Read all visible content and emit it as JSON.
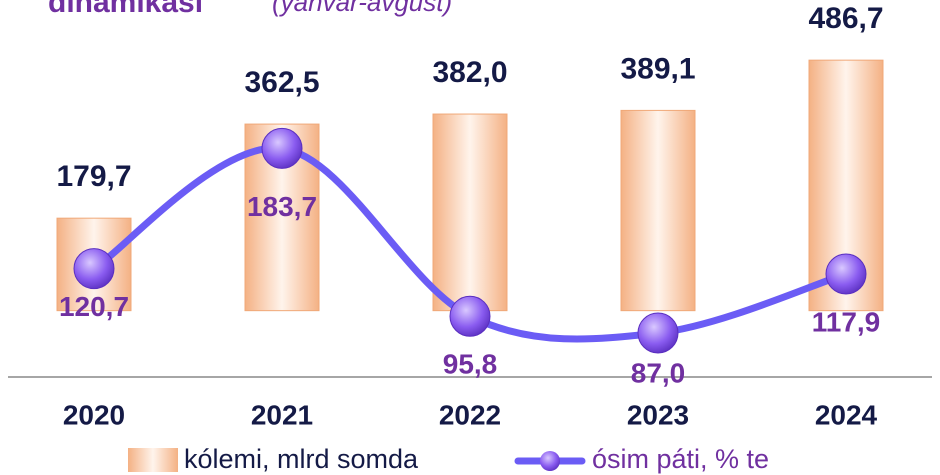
{
  "chart_data": {
    "type": "bar_line",
    "title": "dinamikasi",
    "subtitle": "(yanvar-avgust)",
    "categories": [
      "2020",
      "2021",
      "2022",
      "2023",
      "2024"
    ],
    "series": [
      {
        "name": "kólemi, mlrd somda",
        "type": "bar",
        "color": "#f7c4a0",
        "values": [
          179.7,
          362.5,
          382.0,
          389.1,
          486.7
        ],
        "value_labels": [
          "179,7",
          "362,5",
          "382,0",
          "389,1",
          "486,7"
        ]
      },
      {
        "name": "ósim páti, % te",
        "type": "line",
        "axis": "y2",
        "color": "#6b5cf5",
        "values": [
          120.7,
          183.7,
          95.8,
          87.0,
          117.9
        ],
        "value_labels": [
          "120,7",
          "183,7",
          "95,8",
          "87,0",
          "117,9"
        ]
      }
    ],
    "ylim": [
      -125,
      487
    ],
    "y2lim": [
      65,
      230
    ]
  }
}
